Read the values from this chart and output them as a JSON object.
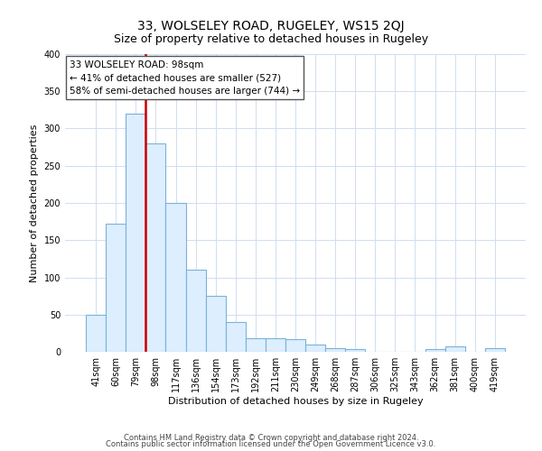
{
  "title": "33, WOLSELEY ROAD, RUGELEY, WS15 2QJ",
  "subtitle": "Size of property relative to detached houses in Rugeley",
  "xlabel": "Distribution of detached houses by size in Rugeley",
  "ylabel": "Number of detached properties",
  "bin_labels": [
    "41sqm",
    "60sqm",
    "79sqm",
    "98sqm",
    "117sqm",
    "136sqm",
    "154sqm",
    "173sqm",
    "192sqm",
    "211sqm",
    "230sqm",
    "249sqm",
    "268sqm",
    "287sqm",
    "306sqm",
    "325sqm",
    "343sqm",
    "362sqm",
    "381sqm",
    "400sqm",
    "419sqm"
  ],
  "bar_values": [
    50,
    172,
    320,
    280,
    200,
    110,
    75,
    40,
    18,
    18,
    17,
    10,
    5,
    4,
    0,
    0,
    0,
    4,
    7,
    0,
    5
  ],
  "bar_color": "#ddeeff",
  "bar_edge_color": "#7ab3d8",
  "vline_color": "#cc0000",
  "ylim": [
    0,
    400
  ],
  "yticks": [
    0,
    50,
    100,
    150,
    200,
    250,
    300,
    350,
    400
  ],
  "annotation_text": "33 WOLSELEY ROAD: 98sqm\n← 41% of detached houses are smaller (527)\n58% of semi-detached houses are larger (744) →",
  "annotation_box_color": "#ffffff",
  "annotation_box_edge": "#555555",
  "footer1": "Contains HM Land Registry data © Crown copyright and database right 2024.",
  "footer2": "Contains public sector information licensed under the Open Government Licence v3.0.",
  "bg_color": "#ffffff",
  "grid_color": "#d0ddf0",
  "title_fontsize": 10,
  "subtitle_fontsize": 9,
  "xlabel_fontsize": 8,
  "ylabel_fontsize": 8,
  "tick_fontsize": 7,
  "footer_fontsize": 6
}
